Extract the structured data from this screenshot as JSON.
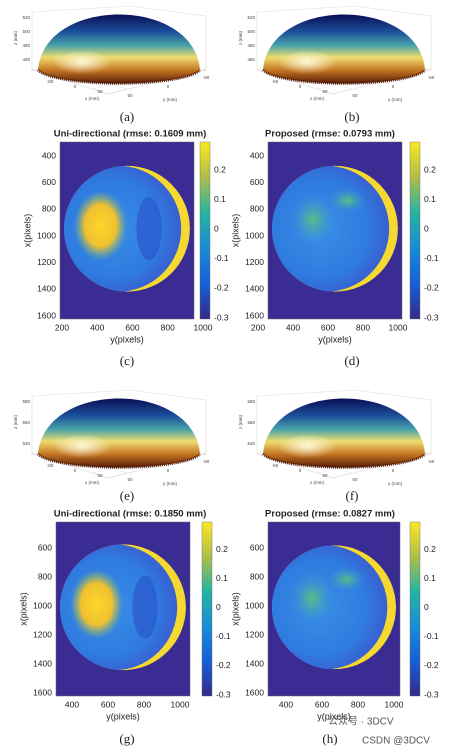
{
  "panels": [
    {
      "label": "(a)",
      "z_label": "z (mm)",
      "x_label": "x (mm)",
      "y_label": "y (mm)",
      "z_ticks": [
        460,
        480,
        500,
        520
      ],
      "x_ticks": [
        -50,
        0,
        50
      ],
      "y_ticks": [
        50,
        0,
        -50
      ]
    },
    {
      "label": "(b)",
      "z_label": "z (mm)",
      "x_label": "x (mm)",
      "y_label": "y (mm)",
      "z_ticks": [
        460,
        480,
        500,
        520
      ],
      "x_ticks": [
        -50,
        0,
        50
      ],
      "y_ticks": [
        50,
        0,
        -50
      ]
    },
    {
      "label": "(c)",
      "title": "Uni-directional (rmse: 0.1609 mm)",
      "x_label": "y(pixels)",
      "y_label": "x(pixels)",
      "x_ticks": [
        200,
        400,
        600,
        800,
        1000
      ],
      "y_ticks": [
        400,
        600,
        800,
        1000,
        1200,
        1400,
        1600
      ],
      "colorbar_ticks": [
        0.2,
        0.1,
        0,
        -0.1,
        -0.2,
        -0.3
      ]
    },
    {
      "label": "(d)",
      "title": "Proposed (rmse: 0.0793 mm)",
      "x_label": "y(pixels)",
      "y_label": "x(pixels)",
      "x_ticks": [
        200,
        400,
        600,
        800,
        1000
      ],
      "y_ticks": [
        400,
        600,
        800,
        1000,
        1200,
        1400,
        1600
      ],
      "colorbar_ticks": [
        0.2,
        0.1,
        0,
        -0.1,
        -0.2,
        -0.3
      ]
    },
    {
      "label": "(e)",
      "z_label": "z (mm)",
      "x_label": "x (mm)",
      "y_label": "y (mm)",
      "z_ticks": [
        540,
        560,
        580
      ],
      "x_ticks": [
        -50,
        0,
        50
      ],
      "y_ticks": [
        50,
        0,
        -50
      ]
    },
    {
      "label": "(f)",
      "z_label": "z (mm)",
      "x_label": "x (mm)",
      "y_label": "y (mm)",
      "z_ticks": [
        540,
        560,
        580
      ],
      "x_ticks": [
        -50,
        0,
        50
      ],
      "y_ticks": [
        50,
        0,
        -50
      ]
    },
    {
      "label": "(g)",
      "title": "Uni-directional (rmse: 0.1850 mm)",
      "x_label": "y(pixels)",
      "y_label": "x(pixels)",
      "x_ticks": [
        400,
        600,
        800,
        1000
      ],
      "y_ticks": [
        600,
        800,
        1000,
        1200,
        1400,
        1600
      ],
      "colorbar_ticks": [
        0.2,
        0.1,
        0,
        -0.1,
        -0.2,
        -0.3
      ]
    },
    {
      "label": "(h)",
      "title": "Proposed (rmse: 0.0827 mm)",
      "x_label": "y(pixels)",
      "y_label": "x(pixels)",
      "x_ticks": [
        400,
        600,
        800,
        1000
      ],
      "y_ticks": [
        600,
        800,
        1000,
        1200,
        1400,
        1600
      ],
      "colorbar_ticks": [
        0.2,
        0.1,
        0,
        -0.1,
        -0.2,
        -0.3
      ]
    }
  ],
  "watermark": {
    "wechat": "公众号 · 3DCV",
    "csdn": "CSDN @3DCV"
  }
}
